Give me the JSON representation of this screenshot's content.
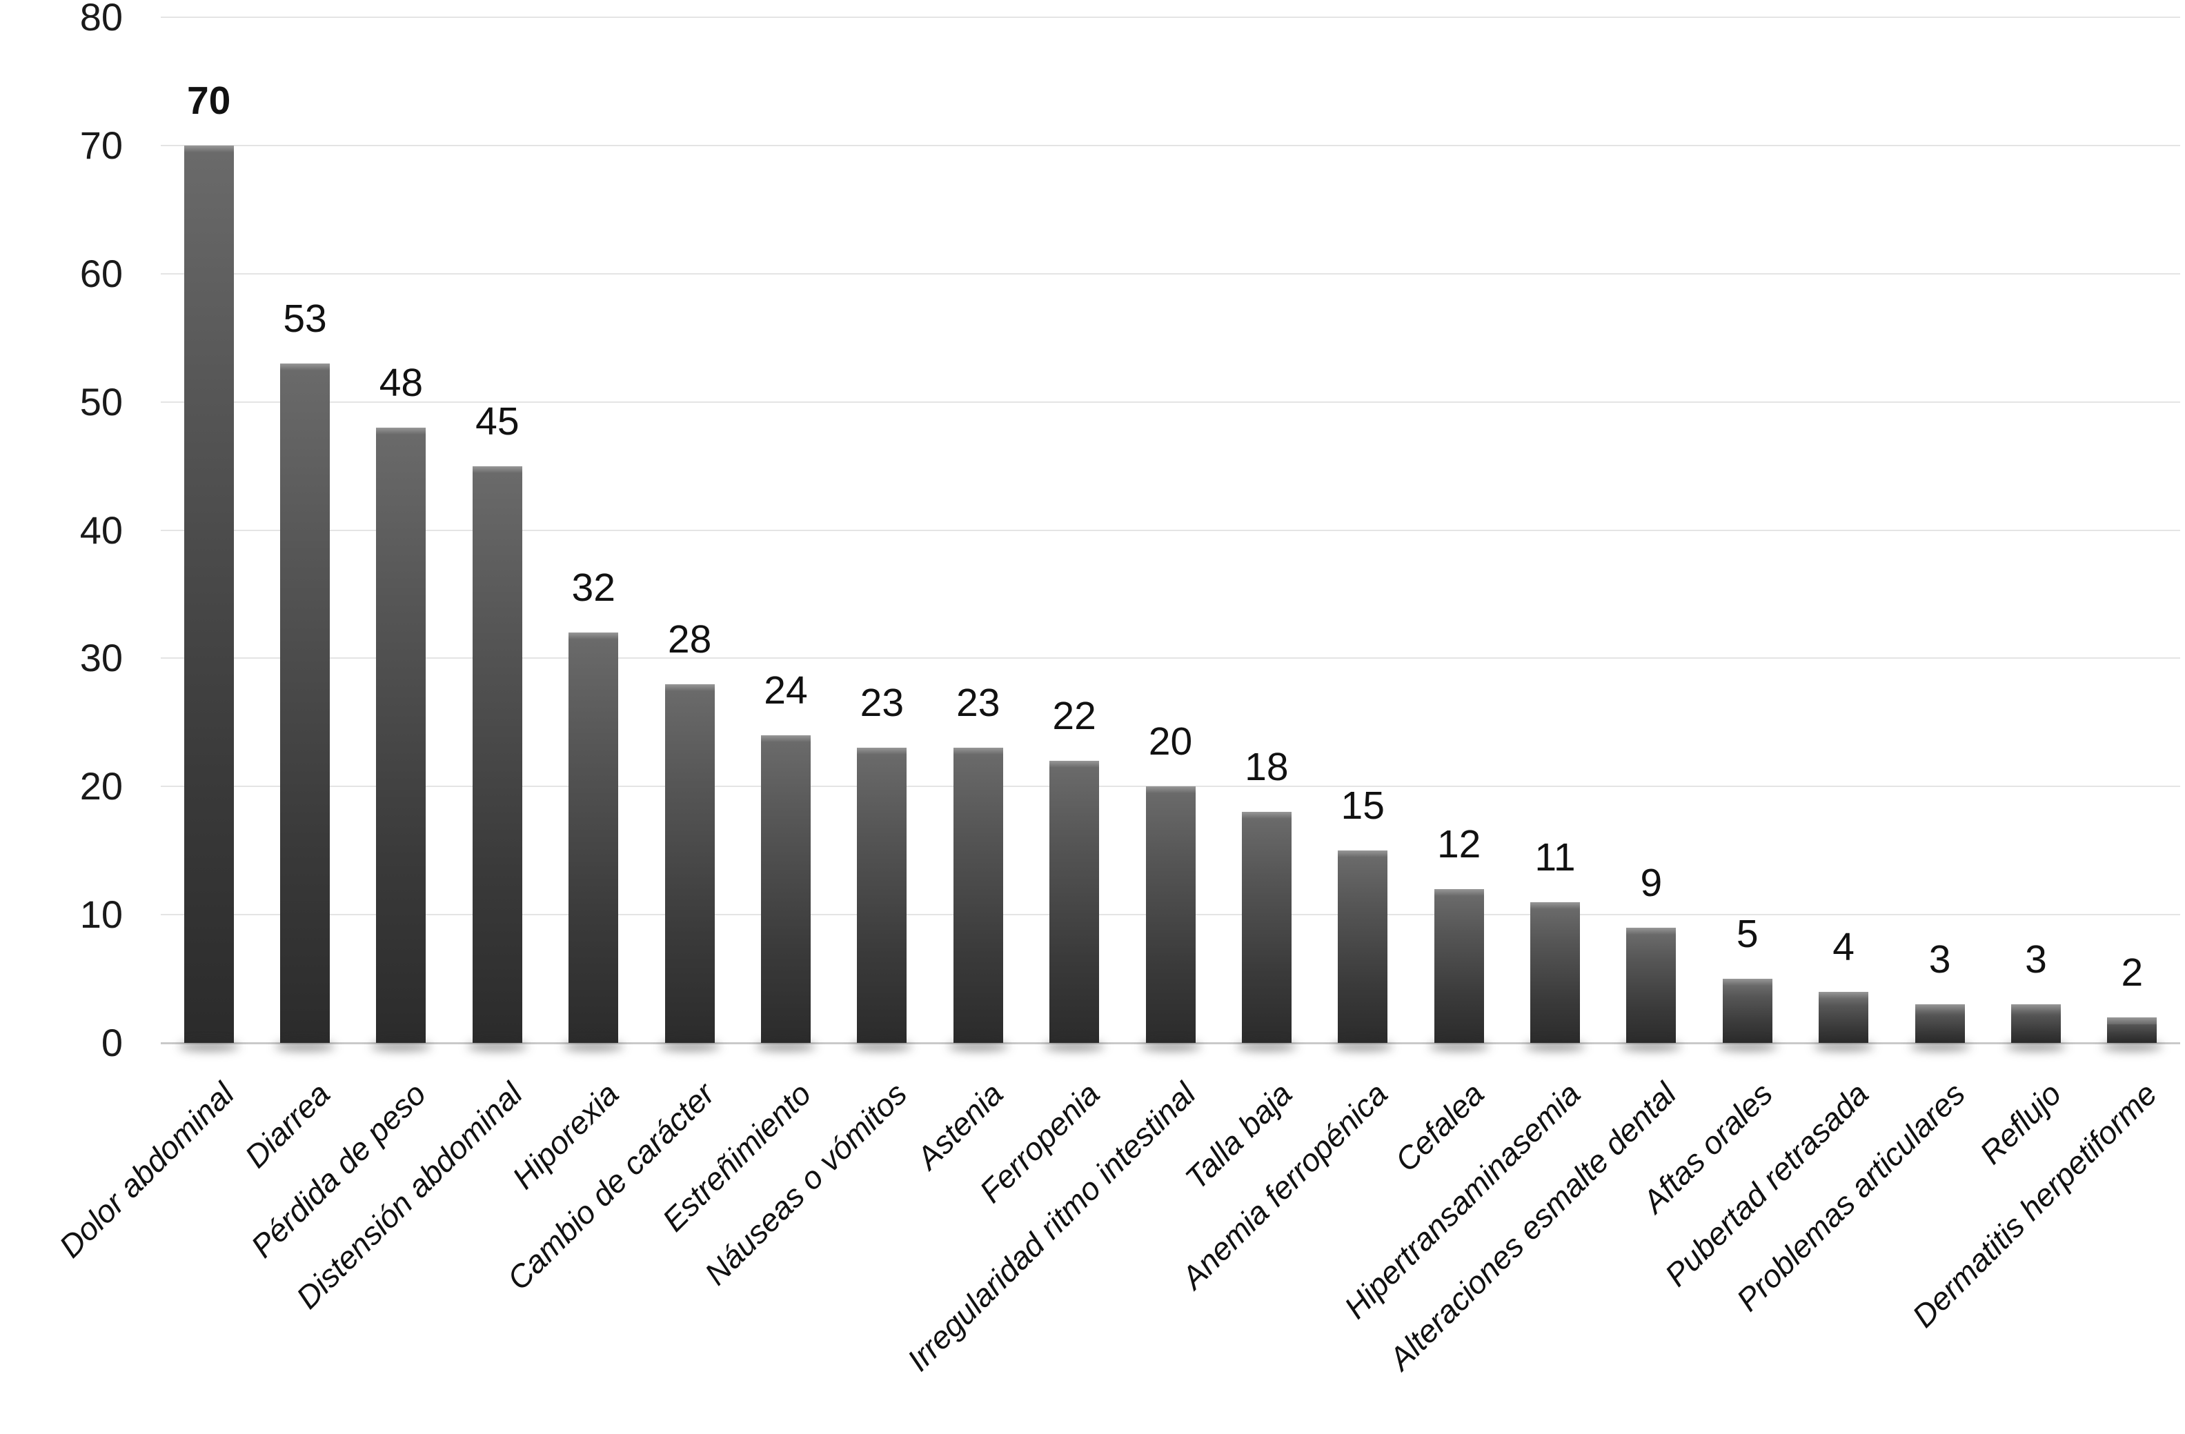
{
  "chart_data": {
    "type": "bar",
    "title": "",
    "xlabel": "",
    "ylabel": "",
    "categories": [
      "Dolor abdominal",
      "Diarrea",
      "Pérdida de peso",
      "Distensión abdominal",
      "Hiporexia",
      "Cambio de carácter",
      "Estreñimiento",
      "Náuseas o vómitos",
      "Astenia",
      "Ferropenia",
      "Irregularidad ritmo intestinal",
      "Talla baja",
      "Anemia ferropénica",
      "Cefalea",
      "Hipertransaminasemia",
      "Alteraciones esmalte dental",
      "Aftas orales",
      "Pubertad retrasada",
      "Problemas articulares",
      "Reflujo",
      "Dermatitis herpetiforme"
    ],
    "values": [
      70,
      53,
      48,
      45,
      32,
      28,
      24,
      23,
      23,
      22,
      20,
      18,
      15,
      12,
      11,
      9,
      5,
      4,
      3,
      3,
      2
    ],
    "bold_value_index": 0,
    "ylim": [
      0,
      80
    ],
    "yticks": [
      0,
      10,
      20,
      30,
      40,
      50,
      60,
      70,
      80
    ],
    "grid": true,
    "legend": "none",
    "bar_label_position": "above",
    "x_label_rotation_deg": -45,
    "colors": {
      "bar_gradient_top": "#6a6a6a",
      "bar_gradient_bottom": "#2b2b2b",
      "bar_top_highlight": "#989898",
      "gridline": "#e4e4e4",
      "baseline": "#c9c9c9",
      "text": "#111111",
      "background": "#ffffff"
    }
  }
}
